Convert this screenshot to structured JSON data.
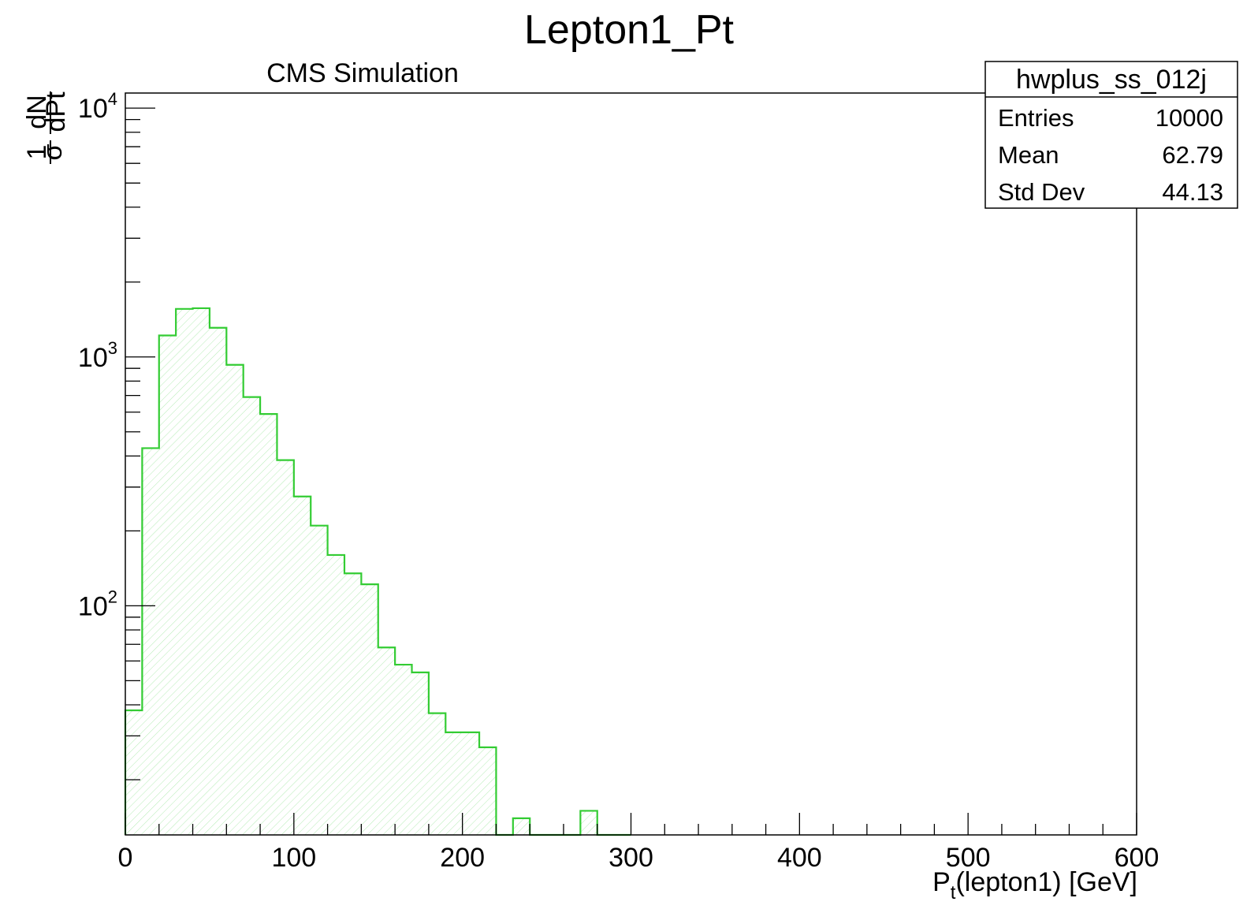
{
  "chart_data": {
    "type": "bar",
    "histogram": true,
    "title": "Lepton1_Pt",
    "annotation": "CMS Simulation",
    "xlabel_main": "P",
    "xlabel_sub": "t",
    "xlabel_rest": "(lepton1) [GeV]",
    "ylabel": "1/σ dN/dPt",
    "ylabel_num1": "1",
    "ylabel_den1": "σ",
    "ylabel_num2": "dN",
    "ylabel_den2": "dPt",
    "xlim": [
      0,
      600
    ],
    "ylim": [
      12,
      11500
    ],
    "yscale": "log",
    "x_ticks": [
      "0",
      "100",
      "200",
      "300",
      "400",
      "500",
      "600"
    ],
    "y_ticks": [
      {
        "base": "10",
        "exp": "2",
        "value": 100
      },
      {
        "base": "10",
        "exp": "3",
        "value": 1000
      },
      {
        "base": "10",
        "exp": "4",
        "value": 10000
      }
    ],
    "bin_width": 10,
    "bin_edges_start": 0,
    "values": [
      38,
      430,
      1220,
      1560,
      1570,
      1310,
      930,
      690,
      590,
      385,
      275,
      210,
      160,
      135,
      122,
      68,
      58,
      54,
      37,
      31,
      31,
      27,
      0,
      14,
      0,
      0,
      0,
      15,
      0,
      0
    ],
    "line_color": "#33cc33",
    "fill_color": "#33cc33",
    "grid": false,
    "stats_box": {
      "name": "hwplus_ss_012j",
      "rows": [
        {
          "label": "Entries",
          "value": "10000"
        },
        {
          "label": "Mean",
          "value": "62.79"
        },
        {
          "label": "Std Dev",
          "value": "44.13"
        }
      ]
    }
  }
}
